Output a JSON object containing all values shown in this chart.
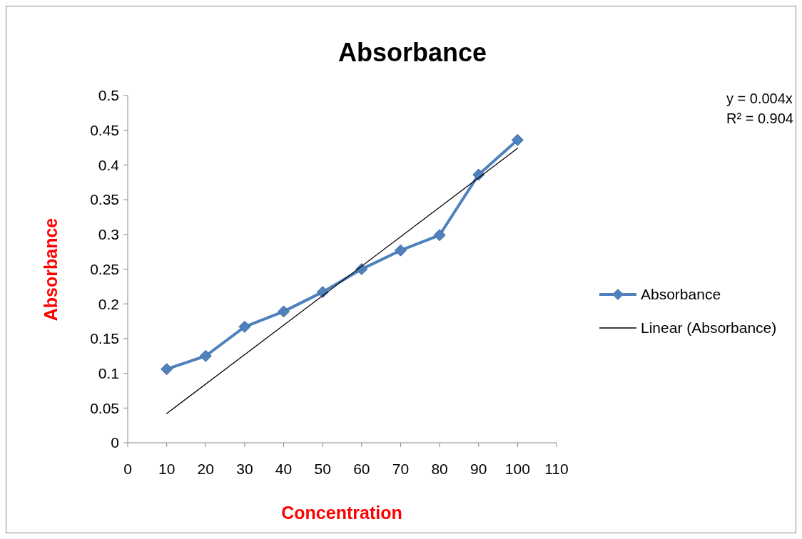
{
  "chart_data": {
    "type": "line",
    "title": "Absorbance",
    "xlabel": "Concentration",
    "ylabel": "Absorbance",
    "x": [
      10,
      20,
      30,
      40,
      50,
      60,
      70,
      80,
      90,
      100
    ],
    "series": [
      {
        "name": "Absorbance",
        "color": "#4f81bd",
        "marker": "diamond",
        "values": [
          0.106,
          0.125,
          0.167,
          0.189,
          0.217,
          0.25,
          0.277,
          0.299,
          0.386,
          0.436
        ]
      },
      {
        "name": "Linear (Absorbance)",
        "color": "#000000",
        "marker": "none",
        "x": [
          10,
          100
        ],
        "values": [
          0.042,
          0.424
        ]
      }
    ],
    "xlim": [
      0,
      110
    ],
    "xticks": [
      0,
      10,
      20,
      30,
      40,
      50,
      60,
      70,
      80,
      90,
      100,
      110
    ],
    "ylim": [
      0,
      0.5
    ],
    "yticks": [
      0,
      0.05,
      0.1,
      0.15,
      0.2,
      0.25,
      0.3,
      0.35,
      0.4,
      0.45,
      0.5
    ],
    "legend": "right",
    "grid": false,
    "annotations": [
      "y = 0.004x",
      "R² = 0.904"
    ]
  }
}
